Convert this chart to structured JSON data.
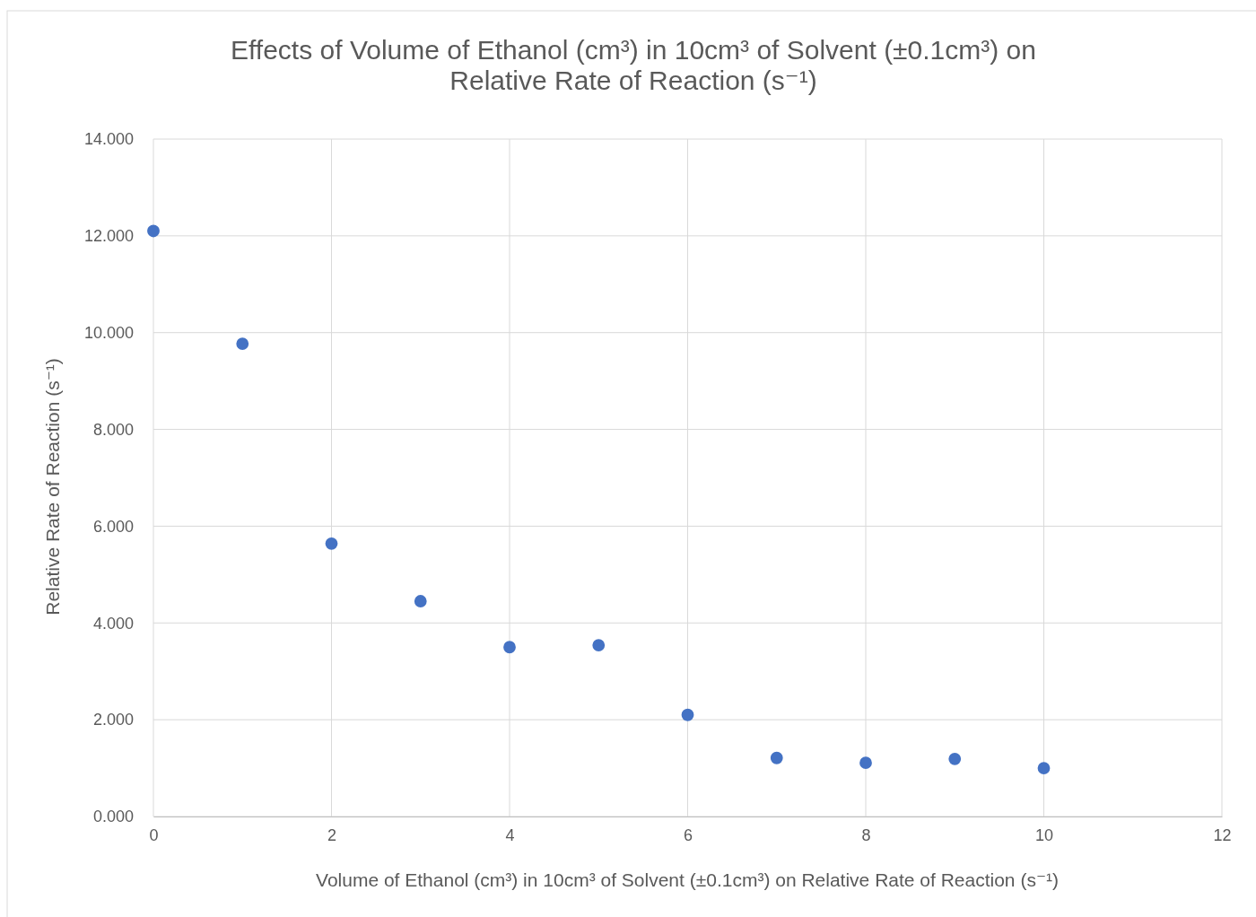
{
  "chart_data": {
    "type": "scatter",
    "title": "Effects of Volume of Ethanol (cm³) in 10cm³ of Solvent (±0.1cm³) on Relative Rate of Reaction (s⁻¹)",
    "xlabel": "Volume of Ethanol (cm³) in 10cm³ of Solvent (±0.1cm³) on Relative Rate of Reaction (s⁻¹)",
    "ylabel": "Relative Rate of Reaction (s⁻¹)",
    "x": [
      0,
      1,
      2,
      3,
      4,
      5,
      6,
      7,
      8,
      9,
      10
    ],
    "series": [
      {
        "color": "#4472c4",
        "values": [
          12.1,
          9.77,
          5.64,
          4.45,
          3.5,
          3.54,
          2.1,
          1.21,
          1.11,
          1.19,
          1.0
        ]
      }
    ],
    "xlim": [
      0,
      12
    ],
    "xticks": [
      0,
      2,
      4,
      6,
      8,
      10,
      12
    ],
    "ylim": [
      0,
      14
    ],
    "yticks": [
      {
        "value": 0,
        "label": "0.000"
      },
      {
        "value": 2,
        "label": "2.000"
      },
      {
        "value": 4,
        "label": "4.000"
      },
      {
        "value": 6,
        "label": "6.000"
      },
      {
        "value": 8,
        "label": "8.000"
      },
      {
        "value": 10,
        "label": "10.000"
      },
      {
        "value": 12,
        "label": "12.000"
      },
      {
        "value": 14,
        "label": "14.000"
      }
    ],
    "grid": true,
    "marker": "circle"
  }
}
